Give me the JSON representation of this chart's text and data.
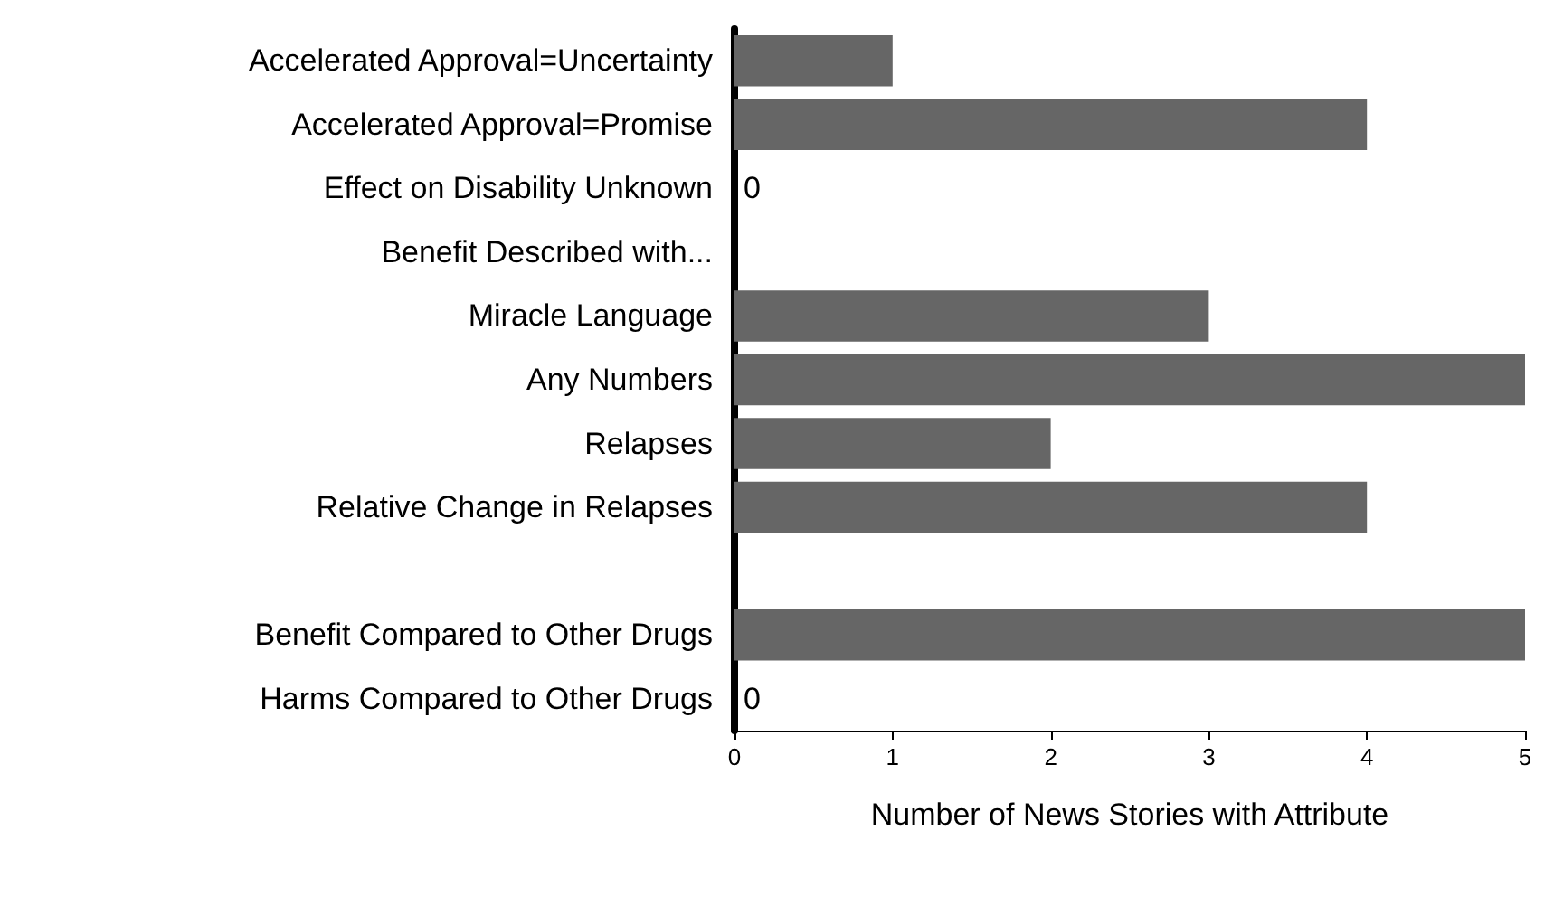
{
  "chart_data": {
    "type": "bar",
    "orientation": "horizontal",
    "xlabel": "Number of News Stories with Attribute",
    "categories": [
      "Accelerated Approval=Uncertainty",
      "Accelerated Approval=Promise",
      "Effect on Disability Unknown",
      "Benefit Described with...",
      "Miracle Language",
      "Any Numbers",
      "Relapses",
      "Relative Change in Relapses",
      null,
      "Benefit Compared to Other Drugs",
      "Harms Compared to Other Drugs"
    ],
    "values": [
      1,
      4,
      0,
      null,
      3,
      5,
      2,
      4,
      null,
      5,
      0
    ],
    "value_labels": [
      null,
      null,
      "0",
      null,
      null,
      null,
      null,
      null,
      null,
      null,
      "0"
    ],
    "color": "#666666",
    "xlim": [
      0,
      5
    ],
    "xticks": [
      0,
      1,
      2,
      3,
      4,
      5
    ],
    "grid": false
  }
}
